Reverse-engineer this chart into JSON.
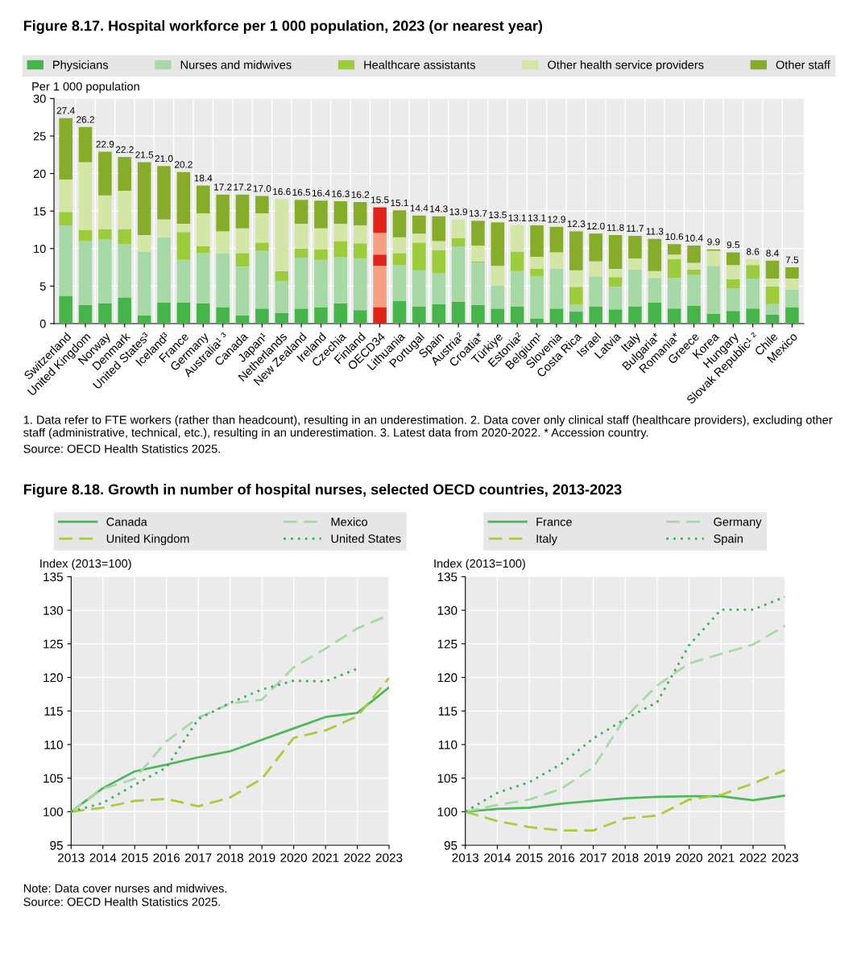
{
  "chart_data": [
    {
      "type": "bar",
      "stacked": true,
      "title": "Figure 8.17. Hospital workforce per 1 000 population, 2023 (or nearest year)",
      "ylabel": "Per 1 000 population",
      "categories": [
        "Switzerland",
        "United Kingdom",
        "Norway",
        "Denmark",
        "United States³",
        "Iceland³",
        "France",
        "Germany",
        "Australia¹ ³",
        "Canada",
        "Japan¹",
        "Netherlands",
        "New Zealand",
        "Ireland",
        "Czechia",
        "Finland",
        "OECD34",
        "Lithuania",
        "Portugal",
        "Spain",
        "Austria²",
        "Croatia*",
        "Türkiye",
        "Estonia²",
        "Belgium¹",
        "Slovenia",
        "Costa Rica",
        "Israel",
        "Latvia",
        "Italy",
        "Bulgaria*",
        "Romania*",
        "Greece",
        "Korea",
        "Hungary",
        "Slovak Republic¹ ²",
        "Chile",
        "Mexico"
      ],
      "series": [
        {
          "name": "Physicians",
          "color": "#45b549",
          "colors": [
            "#45b549",
            "#45b549",
            "#45b549",
            "#45b549",
            "#45b549",
            "#45b549",
            "#45b549",
            "#45b549",
            "#45b549",
            "#45b549",
            "#45b549",
            "#45b549",
            "#45b549",
            "#45b549",
            "#45b549",
            "#45b549",
            "#e2231a",
            "#45b549",
            "#45b549",
            "#45b549",
            "#45b549",
            "#45b549",
            "#45b549",
            "#45b549",
            "#45b549",
            "#45b549",
            "#45b549",
            "#45b549",
            "#45b549",
            "#45b549",
            "#45b549",
            "#45b549",
            "#45b549",
            "#45b549",
            "#45b549",
            "#45b549",
            "#45b549",
            "#45b549"
          ],
          "values": [
            3.7,
            2.5,
            2.7,
            3.5,
            1.1,
            2.8,
            2.8,
            2.7,
            2.2,
            1.1,
            2.0,
            1.4,
            2.0,
            2.2,
            2.7,
            1.8,
            2.2,
            3.0,
            2.3,
            2.6,
            2.9,
            2.5,
            2.0,
            2.3,
            0.7,
            2.0,
            1.6,
            2.3,
            1.9,
            2.3,
            2.8,
            2.0,
            2.4,
            1.3,
            1.7,
            2.0,
            1.2,
            2.2
          ]
        },
        {
          "name": "Nurses and midwives",
          "color": "#a6d9a6",
          "colors": [
            "#a6d9a6",
            "#a6d9a6",
            "#a6d9a6",
            "#a6d9a6",
            "#a6d9a6",
            "#a6d9a6",
            "#a6d9a6",
            "#a6d9a6",
            "#a6d9a6",
            "#a6d9a6",
            "#a6d9a6",
            "#a6d9a6",
            "#a6d9a6",
            "#a6d9a6",
            "#a6d9a6",
            "#a6d9a6",
            "#f4a081",
            "#a6d9a6",
            "#a6d9a6",
            "#a6d9a6",
            "#a6d9a6",
            "#a6d9a6",
            "#a6d9a6",
            "#a6d9a6",
            "#a6d9a6",
            "#a6d9a6",
            "#a6d9a6",
            "#a6d9a6",
            "#a6d9a6",
            "#a6d9a6",
            "#a6d9a6",
            "#a6d9a6",
            "#a6d9a6",
            "#a6d9a6",
            "#a6d9a6",
            "#a6d9a6",
            "#a6d9a6",
            "#a6d9a6"
          ],
          "values": [
            9.4,
            8.5,
            8.5,
            7.1,
            8.5,
            8.7,
            5.7,
            6.7,
            7.2,
            6.5,
            7.7,
            4.3,
            6.8,
            6.3,
            6.2,
            6.9,
            5.5,
            4.8,
            4.8,
            4.1,
            7.4,
            5.6,
            3.1,
            4.7,
            5.6,
            5.3,
            0.9,
            4.0,
            3.0,
            4.9,
            3.3,
            4.1,
            4.1,
            6.4,
            3.0,
            4.0,
            1.4,
            2.3
          ]
        },
        {
          "name": "Healthcare assistants",
          "color": "#9ccc3c",
          "colors": [
            "#9ccc3c",
            "#9ccc3c",
            "#9ccc3c",
            "#9ccc3c",
            "#9ccc3c",
            "#9ccc3c",
            "#9ccc3c",
            "#9ccc3c",
            "#9ccc3c",
            "#9ccc3c",
            "#9ccc3c",
            "#9ccc3c",
            "#9ccc3c",
            "#9ccc3c",
            "#9ccc3c",
            "#9ccc3c",
            "#e2231a",
            "#9ccc3c",
            "#9ccc3c",
            "#9ccc3c",
            "#9ccc3c",
            "#9ccc3c",
            "#9ccc3c",
            "#9ccc3c",
            "#9ccc3c",
            "#9ccc3c",
            "#9ccc3c",
            "#9ccc3c",
            "#9ccc3c",
            "#9ccc3c",
            "#9ccc3c",
            "#9ccc3c",
            "#9ccc3c",
            "#9ccc3c",
            "#9ccc3c",
            "#9ccc3c",
            "#9ccc3c",
            "#9ccc3c"
          ],
          "values": [
            1.8,
            1.5,
            1.4,
            2.0,
            null,
            null,
            3.7,
            0.9,
            null,
            1.8,
            1.1,
            1.3,
            1.2,
            1.4,
            2.1,
            2.0,
            1.5,
            1.6,
            3.7,
            3.1,
            1.1,
            0.2,
            null,
            2.6,
            1.0,
            null,
            2.4,
            null,
            1.3,
            null,
            null,
            2.5,
            0.7,
            null,
            1.2,
            1.8,
            2.4,
            null
          ]
        },
        {
          "name": "Other health service providers",
          "color": "#d4e6a5",
          "colors": [
            "#d4e6a5",
            "#d4e6a5",
            "#d4e6a5",
            "#d4e6a5",
            "#d4e6a5",
            "#d4e6a5",
            "#d4e6a5",
            "#d4e6a5",
            "#d4e6a5",
            "#d4e6a5",
            "#d4e6a5",
            "#d4e6a5",
            "#d4e6a5",
            "#d4e6a5",
            "#d4e6a5",
            "#d4e6a5",
            "#f4a081",
            "#d4e6a5",
            "#d4e6a5",
            "#d4e6a5",
            "#d4e6a5",
            "#d4e6a5",
            "#d4e6a5",
            "#d4e6a5",
            "#d4e6a5",
            "#d4e6a5",
            "#d4e6a5",
            "#d4e6a5",
            "#d4e6a5",
            "#d4e6a5",
            "#d4e6a5",
            "#d4e6a5",
            "#d4e6a5",
            "#d4e6a5",
            "#d4e6a5",
            "#d4e6a5",
            "#d4e6a5",
            "#d4e6a5"
          ],
          "values": [
            4.3,
            9.0,
            4.5,
            5.1,
            2.2,
            2.4,
            1.1,
            4.4,
            2.9,
            3.3,
            3.9,
            9.6,
            3.3,
            2.8,
            2.3,
            2.4,
            2.9,
            2.1,
            1.2,
            1.2,
            2.5,
            2.1,
            2.6,
            3.5,
            1.6,
            2.2,
            2.2,
            2.0,
            1.1,
            1.5,
            0.9,
            0.6,
            0.9,
            2.0,
            1.9,
            0.8,
            1.0,
            1.5
          ]
        },
        {
          "name": "Other staff",
          "color": "#86ad2a",
          "colors": [
            "#86ad2a",
            "#86ad2a",
            "#86ad2a",
            "#86ad2a",
            "#86ad2a",
            "#86ad2a",
            "#86ad2a",
            "#86ad2a",
            "#86ad2a",
            "#86ad2a",
            "#86ad2a",
            "#86ad2a",
            "#86ad2a",
            "#86ad2a",
            "#86ad2a",
            "#86ad2a",
            "#e2231a",
            "#86ad2a",
            "#86ad2a",
            "#86ad2a",
            "#86ad2a",
            "#86ad2a",
            "#86ad2a",
            "#86ad2a",
            "#86ad2a",
            "#86ad2a",
            "#86ad2a",
            "#86ad2a",
            "#86ad2a",
            "#86ad2a",
            "#86ad2a",
            "#86ad2a",
            "#86ad2a",
            "#86ad2a",
            "#86ad2a",
            "#86ad2a",
            "#86ad2a",
            "#86ad2a"
          ],
          "values": [
            8.2,
            4.7,
            5.8,
            4.5,
            9.7,
            7.1,
            6.9,
            3.7,
            4.9,
            4.5,
            2.3,
            null,
            3.2,
            3.7,
            3.0,
            3.1,
            3.4,
            3.6,
            2.4,
            3.3,
            null,
            3.3,
            5.8,
            null,
            4.2,
            3.4,
            5.2,
            3.7,
            4.5,
            3.0,
            4.3,
            1.4,
            2.3,
            0.2,
            1.7,
            null,
            2.4,
            1.5
          ]
        }
      ],
      "totals": [
        "27.4",
        "26.2",
        "22.9",
        "22.2",
        "21.5",
        "21.0",
        "20.2",
        "18.4",
        "17.2",
        "17.2",
        "17.0",
        "16.6",
        "16.5",
        "16.4",
        "16.3",
        "16.2",
        "15.5",
        "15.1",
        "14.4",
        "14.3",
        "13.9",
        "13.7",
        "13.5",
        "13.1",
        "13.1",
        "12.9",
        "12.3",
        "12.0",
        "11.8",
        "11.7",
        "11.3",
        "10.6",
        "10.4",
        "9.9",
        "9.5",
        "8.6",
        "8.4",
        "7.5"
      ],
      "ylim": [
        0,
        30
      ],
      "yticks": [
        0,
        5,
        10,
        15,
        20,
        25,
        30
      ],
      "grid": true,
      "legend": "top",
      "annotations": [
        "1. Data refer to FTE workers (rather than headcount), resulting in an underestimation. 2. Data cover only clinical staff (healthcare providers), excluding other staff (administrative, technical, etc.), resulting in an underestimation. 3. Latest data from 2020-2022. * Accession country.",
        "Source: OECD Health Statistics 2025."
      ]
    },
    {
      "type": "line",
      "title": "Figure 8.18. Growth in number of hospital nurses, selected OECD countries, 2013-2023",
      "ylabel": "Index (2013=100)",
      "x": [
        2013,
        2014,
        2015,
        2016,
        2017,
        2018,
        2019,
        2020,
        2021,
        2022,
        2023
      ],
      "series": [
        {
          "name": "Canada",
          "color": "#4cb85a",
          "line_style": "solid",
          "values": [
            100,
            103.5,
            106.0,
            107.0,
            108.1,
            109.0,
            110.7,
            112.4,
            114.1,
            114.7,
            118.5
          ]
        },
        {
          "name": "Mexico",
          "color": "#a6d9a6",
          "line_style": "dashed",
          "values": [
            100,
            103.4,
            104.9,
            110.5,
            114.0,
            116.1,
            116.7,
            121.5,
            124.3,
            127.3,
            129.3
          ]
        },
        {
          "name": "United Kingdom",
          "color": "#a8cc3c",
          "line_style": "dashed",
          "values": [
            100,
            100.6,
            101.6,
            101.9,
            100.8,
            102.1,
            104.9,
            111.0,
            112.1,
            114.2,
            119.9
          ]
        },
        {
          "name": "United States",
          "color": "#3fae5a",
          "line_style": "dotted",
          "values": [
            100,
            101.3,
            104.0,
            106.6,
            113.8,
            116.2,
            118.2,
            119.5,
            119.4,
            121.3,
            null
          ]
        }
      ],
      "xlim": [
        2013,
        2023
      ],
      "xticks": [
        2013,
        2014,
        2015,
        2016,
        2017,
        2018,
        2019,
        2020,
        2021,
        2022,
        2023
      ],
      "ylim": [
        95,
        135
      ],
      "yticks": [
        95,
        100,
        105,
        110,
        115,
        120,
        125,
        130,
        135
      ],
      "grid": true,
      "legend": "top",
      "annotations": [
        "Note: Data cover nurses and midwives.",
        "Source: OECD Health Statistics 2025."
      ]
    },
    {
      "type": "line",
      "ylabel": "Index (2013=100)",
      "x": [
        2013,
        2014,
        2015,
        2016,
        2017,
        2018,
        2019,
        2020,
        2021,
        2022,
        2023
      ],
      "series": [
        {
          "name": "France",
          "color": "#4cb85a",
          "line_style": "solid",
          "values": [
            100,
            100.4,
            100.6,
            101.2,
            101.6,
            102.0,
            102.2,
            102.3,
            102.3,
            101.7,
            102.4
          ]
        },
        {
          "name": "Germany",
          "color": "#a6d9a6",
          "line_style": "dashed",
          "values": [
            100,
            101.0,
            101.8,
            103.4,
            106.6,
            114.0,
            118.8,
            122.1,
            123.5,
            124.9,
            127.7
          ]
        },
        {
          "name": "Italy",
          "color": "#a8cc3c",
          "line_style": "dashed",
          "values": [
            100,
            98.6,
            97.7,
            97.2,
            97.2,
            99.0,
            99.4,
            101.8,
            102.5,
            104.2,
            106.2
          ]
        },
        {
          "name": "Spain",
          "color": "#3fae5a",
          "line_style": "dotted",
          "values": [
            100,
            102.8,
            104.4,
            107.1,
            110.9,
            113.8,
            116.3,
            124.8,
            130.1,
            130.1,
            132.0
          ]
        }
      ],
      "xlim": [
        2013,
        2023
      ],
      "xticks": [
        2013,
        2014,
        2015,
        2016,
        2017,
        2018,
        2019,
        2020,
        2021,
        2022,
        2023
      ],
      "ylim": [
        95,
        135
      ],
      "yticks": [
        95,
        100,
        105,
        110,
        115,
        120,
        125,
        130,
        135
      ],
      "grid": true,
      "legend": "top"
    }
  ]
}
